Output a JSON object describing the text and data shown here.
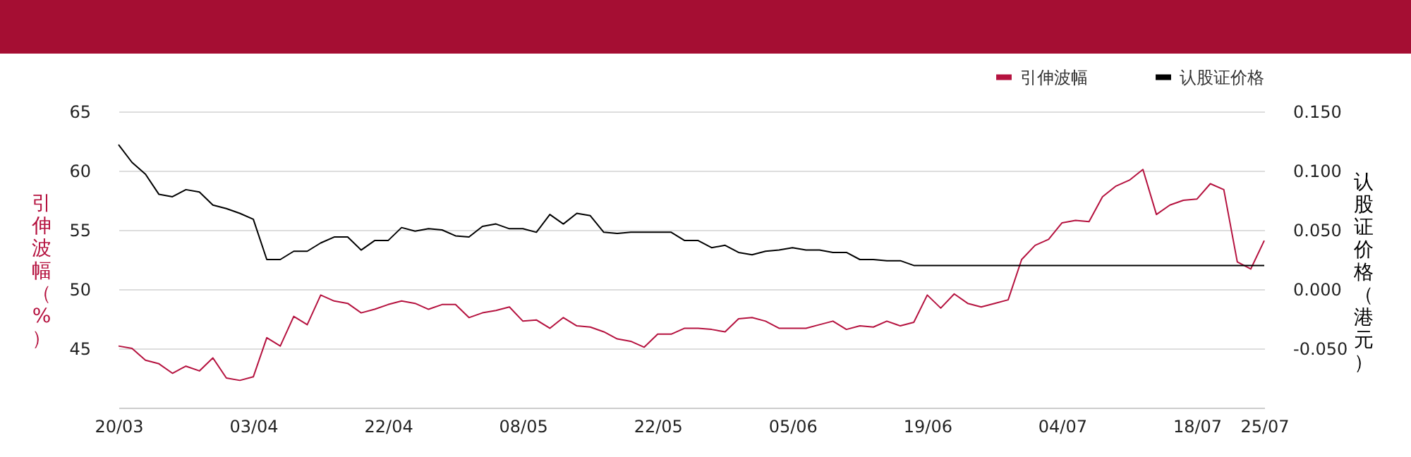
{
  "chart_data": {
    "type": "line",
    "categories": [
      "20/03",
      null,
      null,
      null,
      null,
      null,
      null,
      null,
      null,
      null,
      "03/04",
      null,
      null,
      null,
      null,
      null,
      null,
      null,
      null,
      null,
      "22/04",
      null,
      null,
      null,
      null,
      null,
      null,
      null,
      null,
      null,
      "08/05",
      null,
      null,
      null,
      null,
      null,
      null,
      null,
      null,
      null,
      "22/05",
      null,
      null,
      null,
      null,
      null,
      null,
      null,
      null,
      null,
      "05/06",
      null,
      null,
      null,
      null,
      null,
      null,
      null,
      null,
      null,
      "19/06",
      null,
      null,
      null,
      null,
      null,
      null,
      null,
      null,
      null,
      "04/07",
      null,
      null,
      null,
      null,
      null,
      null,
      null,
      null,
      null,
      "18/07",
      null,
      null,
      null,
      null,
      "25/07"
    ],
    "series": [
      {
        "name": "引伸波幅",
        "color": "#b5123f",
        "values": [
          45.2,
          45.0,
          44.0,
          43.7,
          42.9,
          43.5,
          43.1,
          44.2,
          42.5,
          42.3,
          42.6,
          45.9,
          45.2,
          47.7,
          47.0,
          49.5,
          49.0,
          48.8,
          48.0,
          48.3,
          48.7,
          49.0,
          48.8,
          48.3,
          48.7,
          48.7,
          47.6,
          48.0,
          48.2,
          48.5,
          47.3,
          47.4,
          46.7,
          47.6,
          46.9,
          46.8,
          46.4,
          45.8,
          45.6,
          45.1,
          46.2,
          46.2,
          46.7,
          46.7,
          46.6,
          46.4,
          47.5,
          47.6,
          47.3,
          46.7,
          46.7,
          46.7,
          47.0,
          47.3,
          46.6,
          46.9,
          46.8,
          47.3,
          46.9,
          47.2,
          49.5,
          48.4,
          49.6,
          48.8,
          48.5,
          48.8,
          49.1,
          52.5,
          53.7,
          54.2,
          55.6,
          55.8,
          55.7,
          57.8,
          58.7,
          59.2,
          60.1,
          56.3,
          57.1,
          57.5,
          57.6,
          58.9,
          58.4,
          52.3,
          51.7,
          54.1
        ]
      },
      {
        "name": "认股证价格",
        "color": "#000000",
        "axis": "y2",
        "values": [
          0.122,
          0.107,
          0.097,
          0.08,
          0.078,
          0.084,
          0.082,
          0.071,
          0.068,
          0.064,
          0.059,
          0.025,
          0.025,
          0.032,
          0.032,
          0.039,
          0.044,
          0.044,
          0.033,
          0.041,
          0.041,
          0.052,
          0.049,
          0.051,
          0.05,
          0.045,
          0.044,
          0.053,
          0.055,
          0.051,
          0.051,
          0.048,
          0.063,
          0.055,
          0.064,
          0.062,
          0.048,
          0.047,
          0.048,
          0.048,
          0.048,
          0.048,
          0.041,
          0.041,
          0.035,
          0.037,
          0.031,
          0.029,
          0.032,
          0.033,
          0.035,
          0.033,
          0.033,
          0.031,
          0.031,
          0.025,
          0.025,
          0.024,
          0.024,
          0.02,
          0.02,
          0.02,
          0.02,
          0.02,
          0.02,
          0.02,
          0.02,
          0.02,
          0.02,
          0.02,
          0.02,
          0.02,
          0.02,
          0.02,
          0.02,
          0.02,
          0.02,
          0.02,
          0.02,
          0.02,
          0.02,
          0.02,
          0.02,
          0.02,
          0.02,
          0.02
        ]
      }
    ],
    "ylabel": "引伸波幅（%）",
    "y2label": "认股证价格（港元）",
    "ylim": [
      40,
      65
    ],
    "yticks": [
      45,
      50,
      55,
      60,
      65
    ],
    "y2lim": [
      -0.1,
      0.15
    ],
    "y2ticks": [
      {
        "value": -0.05,
        "label": "-0.050"
      },
      {
        "value": 0,
        "label": "0.000"
      },
      {
        "value": 0.05,
        "label": "0.050"
      },
      {
        "value": 0.1,
        "label": "0.100"
      },
      {
        "value": 0.15,
        "label": "0.150"
      }
    ],
    "grid": "y",
    "legend": "top right",
    "marker": "none",
    "line_style": "solid"
  }
}
